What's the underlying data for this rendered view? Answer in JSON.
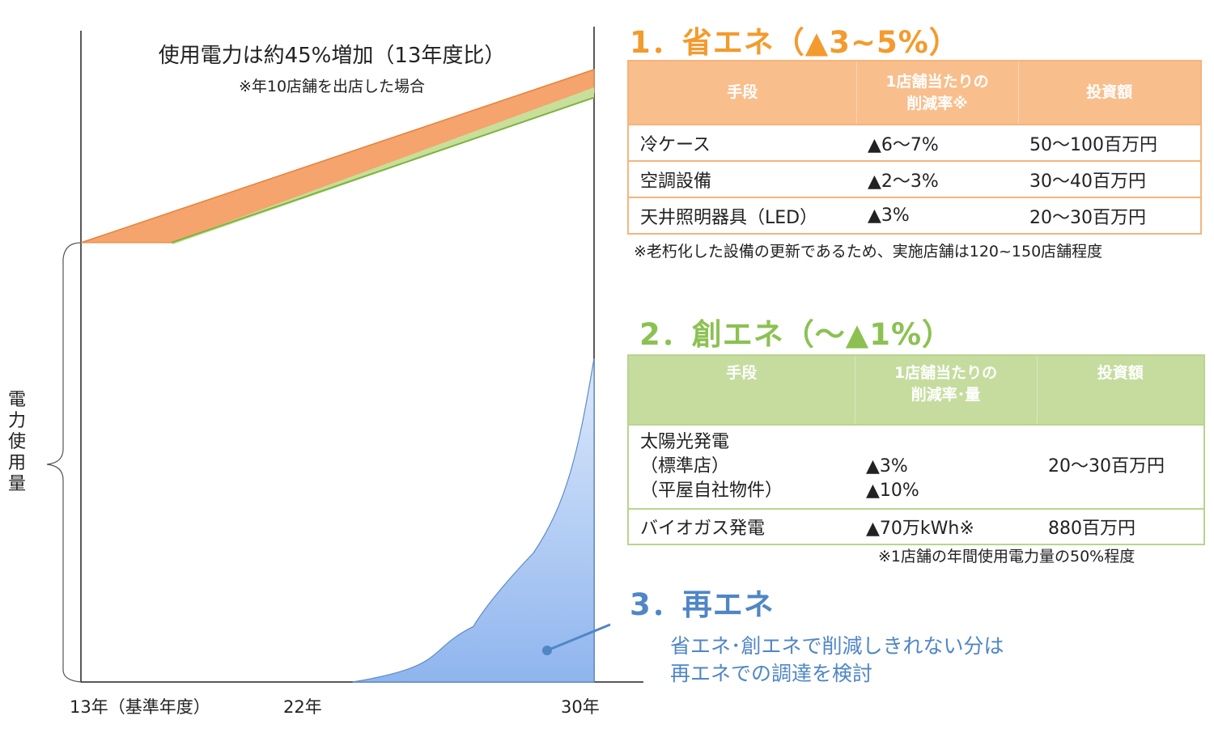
{
  "chart_data": {
    "type": "area",
    "title": "使用電力は約45%増加（13年度比）",
    "note": "※年10店舗を出店した場合",
    "ylabel": "電力使用量",
    "x_ticks": [
      "13年（基準年度）",
      "22年",
      "30年"
    ],
    "x_range": [
      2013,
      2030
    ],
    "series": [
      {
        "values": [
          {
            "x": 2013,
            "y": 100
          },
          {
            "x": 2030,
            "y": 145
          }
        ],
        "color": "#F4A46C"
      },
      {
        "values": [
          {
            "x": 2016,
            "y": 100
          },
          {
            "x": 2030,
            "y": 139
          }
        ],
        "color": "#C7DF9A"
      },
      {
        "values": [
          {
            "x": 2022,
            "y": 0
          },
          {
            "x": 2026,
            "y": 12
          },
          {
            "x": 2028,
            "y": 28
          },
          {
            "x": 2030,
            "y": 70
          }
        ],
        "color": "#8FB5EE"
      }
    ]
  },
  "section1": {
    "title": "1．省エネ（▲3~5%）",
    "headers": [
      "手段",
      "1店舗当たりの\n削減率※",
      "投資額"
    ],
    "rows": [
      [
        "冷ケース",
        "▲6～7%",
        "50～100百万円"
      ],
      [
        "空調設備",
        "▲2～3%",
        "30～40百万円"
      ],
      [
        "天井照明器具（LED）",
        "▲3%",
        "20～30百万円"
      ]
    ],
    "footnote": "※老朽化した設備の更新であるため、実施店舗は120~150店舗程度"
  },
  "section2": {
    "title": "2．創エネ（～▲1%）",
    "headers": [
      "手段",
      "1店舗当たりの\n削減率･量",
      "投資額"
    ],
    "rows": [
      [
        "太陽光発電\n（標準店）\n（平屋自社物件）",
        "\n▲3%\n▲10%",
        "\n20～30百万円"
      ],
      [
        "バイオガス発電",
        "▲70万kWh※",
        "880百万円"
      ]
    ],
    "footnote": "※1店舗の年間使用電力量の50%程度"
  },
  "section3": {
    "title": "3．再エネ",
    "desc": [
      "省エネ･創エネで削減しきれない分は",
      "再エネでの調達を検討"
    ]
  },
  "colors": {
    "orange": "#F39B2E",
    "green": "#8CC152",
    "blue": "#4F86C6"
  }
}
